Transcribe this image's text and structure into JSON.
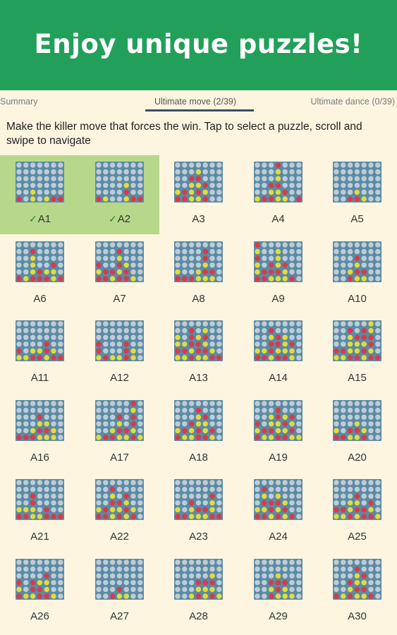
{
  "banner": {
    "title": "Enjoy unique puzzles!"
  },
  "tabs": [
    {
      "label": "Summary",
      "active": false
    },
    {
      "label": "Ultimate move (2/39)",
      "active": true
    },
    {
      "label": "Ultimate dance (0/39)",
      "active": false
    }
  ],
  "instructions": "Make the killer move that forces the win. Tap to select a puzzle, scroll and swipe to navigate",
  "colors": {
    "banner": "#22a05a",
    "board": "#5c8aa3",
    "empty": "#bccdd8",
    "red": "#d83a4a",
    "yellow": "#e2dc3c",
    "solved": "#b7d88a",
    "check_mark": "#3a7a3a"
  },
  "solved_icon": "check-icon",
  "check_symbol": "✓",
  "puzzles": [
    {
      "label": "A1",
      "solved": true,
      "board": [
        ".......",
        ".......",
        ".......",
        ".......",
        "..Y....",
        "R.Y.YRR"
      ]
    },
    {
      "label": "A2",
      "solved": true,
      "board": [
        ".......",
        ".......",
        ".......",
        "....Y..",
        "....R..",
        "RY..YRR"
      ]
    },
    {
      "label": "A3",
      "solved": false,
      "board": [
        ".......",
        "...Y...",
        "..RR...",
        "..YYR..",
        "YRYRY..",
        "RRYYR.."
      ]
    },
    {
      "label": "A4",
      "solved": false,
      "board": [
        "...R...",
        "...Y...",
        "...Y...",
        "..RR...",
        "..YYR..",
        "YRRYY.R"
      ]
    },
    {
      "label": "A5",
      "solved": false,
      "board": [
        ".......",
        ".......",
        ".......",
        ".......",
        "...Y...",
        "..RRY.."
      ]
    },
    {
      "label": "A6",
      "solved": false,
      "board": [
        ".......",
        "..R....",
        "..Y....",
        "..Y..R.",
        "..YRYY.",
        "RYRRRYR"
      ]
    },
    {
      "label": "A7",
      "solved": false,
      "board": [
        ".......",
        "...R...",
        "...Y...",
        "R..RY..",
        "YRRYR..",
        "RRYRRY."
      ]
    },
    {
      "label": "A8",
      "solved": false,
      "board": [
        ".......",
        "....R..",
        "....R..",
        "....Y..",
        "Y..YRR.",
        "RRRYYY."
      ]
    },
    {
      "label": "A9",
      "solved": false,
      "board": [
        "R......",
        "Y..Y...",
        "R..Y...",
        "Y.RYR..",
        "YRRRY..",
        "RRYYYR."
      ]
    },
    {
      "label": "A10",
      "solved": false,
      "board": [
        ".......",
        ".......",
        "...R...",
        "...Y...",
        "..YRR..",
        "..RYY.."
      ]
    },
    {
      "label": "A11",
      "solved": false,
      "board": [
        ".......",
        ".......",
        ".......",
        "....R..",
        "R.YYRY.",
        "YYRRYRR"
      ]
    },
    {
      "label": "A12",
      "solved": false,
      "board": [
        ".......",
        ".......",
        ".......",
        "R...R..",
        "R...RY.",
        "YRYYRY."
      ]
    },
    {
      "label": "A13",
      "solved": false,
      "board": [
        ".......",
        "..R.Y..",
        "Y.RYR..",
        "YYRRY..",
        "RRYRRY.",
        "YYRYYRR"
      ]
    },
    {
      "label": "A14",
      "solved": false,
      "board": [
        ".......",
        "..R....",
        "..YRY..",
        "..RRYR.",
        "YYRYYY.",
        "RRYRRY."
      ]
    },
    {
      "label": "A15",
      "solved": false,
      "board": [
        ".....Y.",
        "..R.RY.",
        "..YRRR.",
        "..YYYR.",
        "RRYYRY.",
        "YYRRYRR"
      ]
    },
    {
      "label": "A16",
      "solved": false,
      "board": [
        ".......",
        ".......",
        "...R...",
        "...YY..",
        "..YRRY.",
        "RRRYYY."
      ]
    },
    {
      "label": "A17",
      "solved": false,
      "board": [
        ".....R.",
        ".....Y.",
        "...R.R.",
        "...Y.R.",
        "..YRRY.",
        "YRRYYRY"
      ]
    },
    {
      "label": "A18",
      "solved": false,
      "board": [
        ".......",
        "...R...",
        "...YR..",
        "..RYY..",
        "YRYRYR.",
        "RYYRRY."
      ]
    },
    {
      "label": "A19",
      "solved": false,
      "board": [
        ".......",
        "...R...",
        "..YRYR.",
        "R.YYRY.",
        "YRRYYR.",
        "RYYRRYY"
      ]
    },
    {
      "label": "A20",
      "solved": false,
      "board": [
        ".......",
        ".......",
        ".......",
        "...Y...",
        "Y.RRY..",
        "RRYYR.."
      ]
    },
    {
      "label": "A21",
      "solved": false,
      "board": [
        ".......",
        ".......",
        "..R....",
        "..R....",
        "YYY.R..",
        "RRYYRRR"
      ]
    },
    {
      "label": "A22",
      "solved": false,
      "board": [
        ".......",
        "..R....",
        "..Y.R..",
        "..RRY..",
        "YRYYRY.",
        "RRYRYR."
      ]
    },
    {
      "label": "A23",
      "solved": false,
      "board": [
        ".......",
        ".......",
        ".....R.",
        "..R..Y.",
        "Y.YRRY.",
        "RRYYYRR"
      ]
    },
    {
      "label": "A24",
      "solved": false,
      "board": [
        ".......",
        ".R.....",
        ".Y.Y...",
        ".RRRY..",
        "YYRYR..",
        "RRYRYR."
      ]
    },
    {
      "label": "A25",
      "solved": false,
      "board": [
        ".......",
        ".......",
        "...R...",
        "..YY.R.",
        "RRYRRY.",
        "YYRYRRY"
      ]
    },
    {
      "label": "A26",
      "solved": false,
      "board": [
        ".......",
        ".......",
        "....R..",
        "R.RYY..",
        "Y.RRY..",
        "RYYRRY."
      ]
    },
    {
      "label": "A27",
      "solved": false,
      "board": [
        ".......",
        ".......",
        ".......",
        ".......",
        "...R...",
        "..RYY.."
      ]
    },
    {
      "label": "A28",
      "solved": false,
      "board": [
        ".......",
        ".......",
        ".....Y.",
        "...RRR.",
        "...YYY.",
        "..YRYRY"
      ]
    },
    {
      "label": "A29",
      "solved": false,
      "board": [
        ".......",
        ".......",
        "...Y...",
        "..RRR..",
        "..YRY..",
        "..RYYY."
      ]
    },
    {
      "label": "A30",
      "solved": false,
      "board": [
        ".......",
        "...R...",
        "...YR..",
        "..RYY..",
        "..YRR..",
        "RYRYYR."
      ]
    }
  ]
}
